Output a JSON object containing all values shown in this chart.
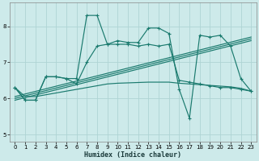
{
  "background_color": "#cdeaea",
  "line_color": "#1a7a6e",
  "grid_color": "#aed4d4",
  "xlabel": "Humidex (Indice chaleur)",
  "xlim": [
    -0.5,
    23.5
  ],
  "ylim": [
    4.8,
    8.65
  ],
  "xticks": [
    0,
    1,
    2,
    3,
    4,
    5,
    6,
    7,
    8,
    9,
    10,
    11,
    12,
    13,
    14,
    15,
    16,
    17,
    18,
    19,
    20,
    21,
    22,
    23
  ],
  "yticks": [
    5,
    6,
    7,
    8
  ],
  "series1_y": [
    6.3,
    5.95,
    5.95,
    6.6,
    6.6,
    6.55,
    6.55,
    8.3,
    8.3,
    7.5,
    7.6,
    7.55,
    7.55,
    7.95,
    7.95,
    7.8,
    6.25,
    5.45,
    7.75,
    7.7,
    7.75,
    7.45,
    6.55,
    6.2
  ],
  "series2_y": [
    6.3,
    5.95,
    5.95,
    6.6,
    6.6,
    6.55,
    6.4,
    7.0,
    7.45,
    7.5,
    7.5,
    7.5,
    7.45,
    7.5,
    7.45,
    7.5,
    6.5,
    6.45,
    6.4,
    6.35,
    6.3,
    6.3,
    6.25,
    6.2
  ],
  "trend_lines": [
    [
      6.05,
      7.7
    ],
    [
      6.0,
      7.65
    ],
    [
      5.95,
      7.6
    ]
  ],
  "flat_y": [
    6.3,
    6.05,
    6.05,
    6.1,
    6.15,
    6.2,
    6.25,
    6.3,
    6.35,
    6.4,
    6.42,
    6.43,
    6.44,
    6.45,
    6.45,
    6.45,
    6.42,
    6.4,
    6.38,
    6.36,
    6.34,
    6.32,
    6.28,
    6.2
  ]
}
